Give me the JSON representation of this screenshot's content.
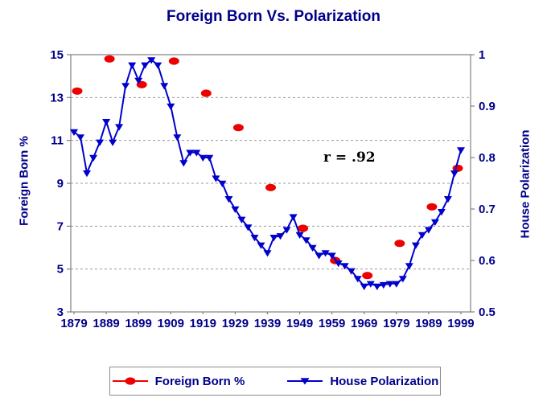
{
  "colors": {
    "navy": "#00008b",
    "red": "#ee0000",
    "blue": "#0000cd",
    "axis_line": "#808080",
    "gridline": "#9a9a9a",
    "annotation_text": "#000000",
    "background": "#ffffff"
  },
  "chart_data": {
    "type": "line",
    "title": "Foreign Born Vs. Polarization",
    "annotation": "r = .92",
    "grid": {
      "horizontal": true,
      "style": "dashed"
    },
    "legend_position": "bottom",
    "x_axis": {
      "range": [
        1878,
        2002
      ],
      "ticks": [
        1879,
        1889,
        1899,
        1909,
        1919,
        1929,
        1939,
        1949,
        1959,
        1969,
        1979,
        1989,
        1999
      ]
    },
    "left_axis": {
      "label": "Foreign Born %",
      "range": [
        3,
        15
      ],
      "ticks": [
        15,
        13,
        11,
        9,
        7,
        5,
        3
      ]
    },
    "right_axis": {
      "label": "House Polarization",
      "range": [
        0.5,
        1
      ],
      "ticks": [
        1,
        0.9,
        0.8,
        0.7,
        0.6,
        0.5
      ]
    },
    "series": [
      {
        "name": "Foreign Born %",
        "type": "scatter",
        "marker": "ellipse",
        "color": "#ee0000",
        "axis": "left",
        "x": [
          1880,
          1890,
          1900,
          1910,
          1920,
          1930,
          1940,
          1950,
          1960,
          1970,
          1980,
          1990,
          1998
        ],
        "y": [
          13.3,
          14.8,
          13.6,
          14.7,
          13.2,
          11.6,
          8.8,
          6.9,
          5.4,
          4.7,
          6.2,
          7.9,
          9.7
        ]
      },
      {
        "name": "House Polarization",
        "type": "line",
        "marker": "triangle-down",
        "color": "#0000cd",
        "axis": "right",
        "x": [
          1879,
          1881,
          1883,
          1885,
          1887,
          1889,
          1891,
          1893,
          1895,
          1897,
          1899,
          1901,
          1903,
          1905,
          1907,
          1909,
          1911,
          1913,
          1915,
          1917,
          1919,
          1921,
          1923,
          1925,
          1927,
          1929,
          1931,
          1933,
          1935,
          1937,
          1939,
          1941,
          1943,
          1945,
          1947,
          1949,
          1951,
          1953,
          1955,
          1957,
          1959,
          1961,
          1963,
          1965,
          1967,
          1969,
          1971,
          1973,
          1975,
          1977,
          1979,
          1981,
          1983,
          1985,
          1987,
          1989,
          1991,
          1993,
          1995,
          1997,
          1999
        ],
        "y": [
          0.85,
          0.84,
          0.77,
          0.8,
          0.83,
          0.87,
          0.83,
          0.86,
          0.94,
          0.98,
          0.95,
          0.98,
          0.99,
          0.98,
          0.94,
          0.9,
          0.84,
          0.79,
          0.81,
          0.81,
          0.8,
          0.8,
          0.76,
          0.75,
          0.72,
          0.7,
          0.68,
          0.665,
          0.645,
          0.63,
          0.615,
          0.645,
          0.648,
          0.66,
          0.685,
          0.65,
          0.64,
          0.625,
          0.61,
          0.615,
          0.61,
          0.595,
          0.59,
          0.58,
          0.565,
          0.55,
          0.555,
          0.55,
          0.553,
          0.555,
          0.555,
          0.565,
          0.59,
          0.63,
          0.65,
          0.66,
          0.675,
          0.695,
          0.72,
          0.77,
          0.815
        ]
      }
    ]
  }
}
